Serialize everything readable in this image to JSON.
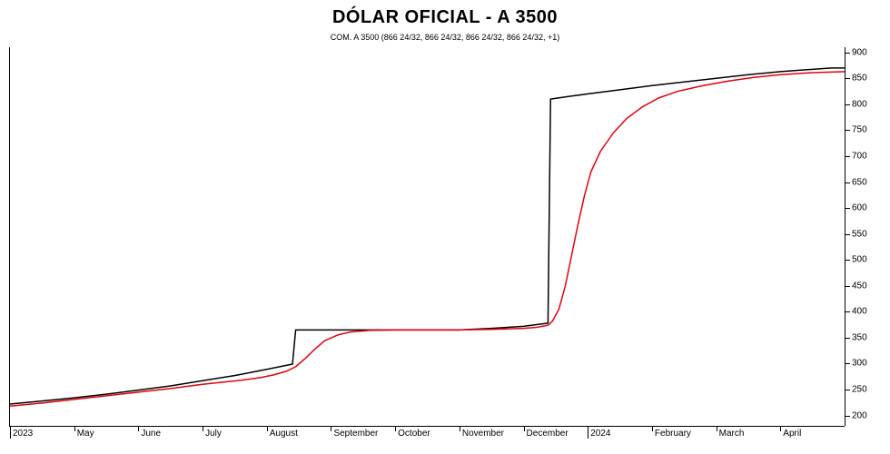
{
  "title": "DÓLAR OFICIAL - A 3500",
  "title_fontsize": 20,
  "subtitle": "COM. A 3500 (866 24/32, 866 24/32, 866 24/32, 866 24/32, +1)",
  "subtitle_fontsize": 9,
  "corner_label": "",
  "chart": {
    "type": "line",
    "background_color": "#ffffff",
    "axis_color": "#000000",
    "ylim": [
      180,
      910
    ],
    "yticks": [
      200,
      250,
      300,
      350,
      400,
      450,
      500,
      550,
      600,
      650,
      700,
      750,
      800,
      850,
      900
    ],
    "xlim": [
      0,
      13
    ],
    "xticks": [
      {
        "pos": 0,
        "label": "2023",
        "sep": true
      },
      {
        "pos": 1,
        "label": "May"
      },
      {
        "pos": 2,
        "label": "June"
      },
      {
        "pos": 3,
        "label": "July"
      },
      {
        "pos": 4,
        "label": "August"
      },
      {
        "pos": 5,
        "label": "September"
      },
      {
        "pos": 6,
        "label": "October"
      },
      {
        "pos": 7,
        "label": "November"
      },
      {
        "pos": 8,
        "label": "December"
      },
      {
        "pos": 9,
        "label": "2024",
        "sep": true
      },
      {
        "pos": 10,
        "label": "February"
      },
      {
        "pos": 11,
        "label": "March"
      },
      {
        "pos": 12,
        "label": "April"
      }
    ],
    "series": [
      {
        "name": "black",
        "color": "#000000",
        "width": 1.5,
        "points": [
          [
            0.0,
            222
          ],
          [
            0.5,
            228
          ],
          [
            1.0,
            234
          ],
          [
            1.5,
            241
          ],
          [
            2.0,
            249
          ],
          [
            2.5,
            257
          ],
          [
            3.0,
            267
          ],
          [
            3.5,
            277
          ],
          [
            4.0,
            289
          ],
          [
            4.4,
            299
          ],
          [
            4.45,
            365
          ],
          [
            5.0,
            365
          ],
          [
            6.0,
            365
          ],
          [
            7.0,
            365
          ],
          [
            7.5,
            368
          ],
          [
            8.0,
            372
          ],
          [
            8.38,
            378
          ],
          [
            8.42,
            810
          ],
          [
            8.7,
            815
          ],
          [
            9.0,
            820
          ],
          [
            9.5,
            828
          ],
          [
            10.0,
            836
          ],
          [
            10.5,
            843
          ],
          [
            11.0,
            850
          ],
          [
            11.5,
            857
          ],
          [
            12.0,
            863
          ],
          [
            12.8,
            870
          ],
          [
            13.0,
            870
          ]
        ]
      },
      {
        "name": "red",
        "color": "#e3000f",
        "width": 1.5,
        "points": [
          [
            0.0,
            218
          ],
          [
            0.5,
            224
          ],
          [
            1.0,
            231
          ],
          [
            1.5,
            238
          ],
          [
            2.0,
            245
          ],
          [
            2.5,
            252
          ],
          [
            3.0,
            260
          ],
          [
            3.3,
            264
          ],
          [
            3.6,
            268
          ],
          [
            3.9,
            273
          ],
          [
            4.1,
            278
          ],
          [
            4.3,
            285
          ],
          [
            4.45,
            294
          ],
          [
            4.6,
            310
          ],
          [
            4.75,
            328
          ],
          [
            4.9,
            344
          ],
          [
            5.1,
            355
          ],
          [
            5.3,
            361
          ],
          [
            5.6,
            364
          ],
          [
            6.0,
            365
          ],
          [
            7.0,
            365
          ],
          [
            7.5,
            366
          ],
          [
            8.0,
            368
          ],
          [
            8.2,
            370
          ],
          [
            8.38,
            374
          ],
          [
            8.45,
            382
          ],
          [
            8.55,
            405
          ],
          [
            8.65,
            450
          ],
          [
            8.75,
            510
          ],
          [
            8.85,
            570
          ],
          [
            8.95,
            625
          ],
          [
            9.05,
            670
          ],
          [
            9.2,
            710
          ],
          [
            9.4,
            745
          ],
          [
            9.6,
            772
          ],
          [
            9.85,
            795
          ],
          [
            10.1,
            812
          ],
          [
            10.4,
            825
          ],
          [
            10.8,
            836
          ],
          [
            11.2,
            845
          ],
          [
            11.6,
            852
          ],
          [
            12.0,
            857
          ],
          [
            12.5,
            861
          ],
          [
            13.0,
            863
          ]
        ]
      }
    ]
  }
}
